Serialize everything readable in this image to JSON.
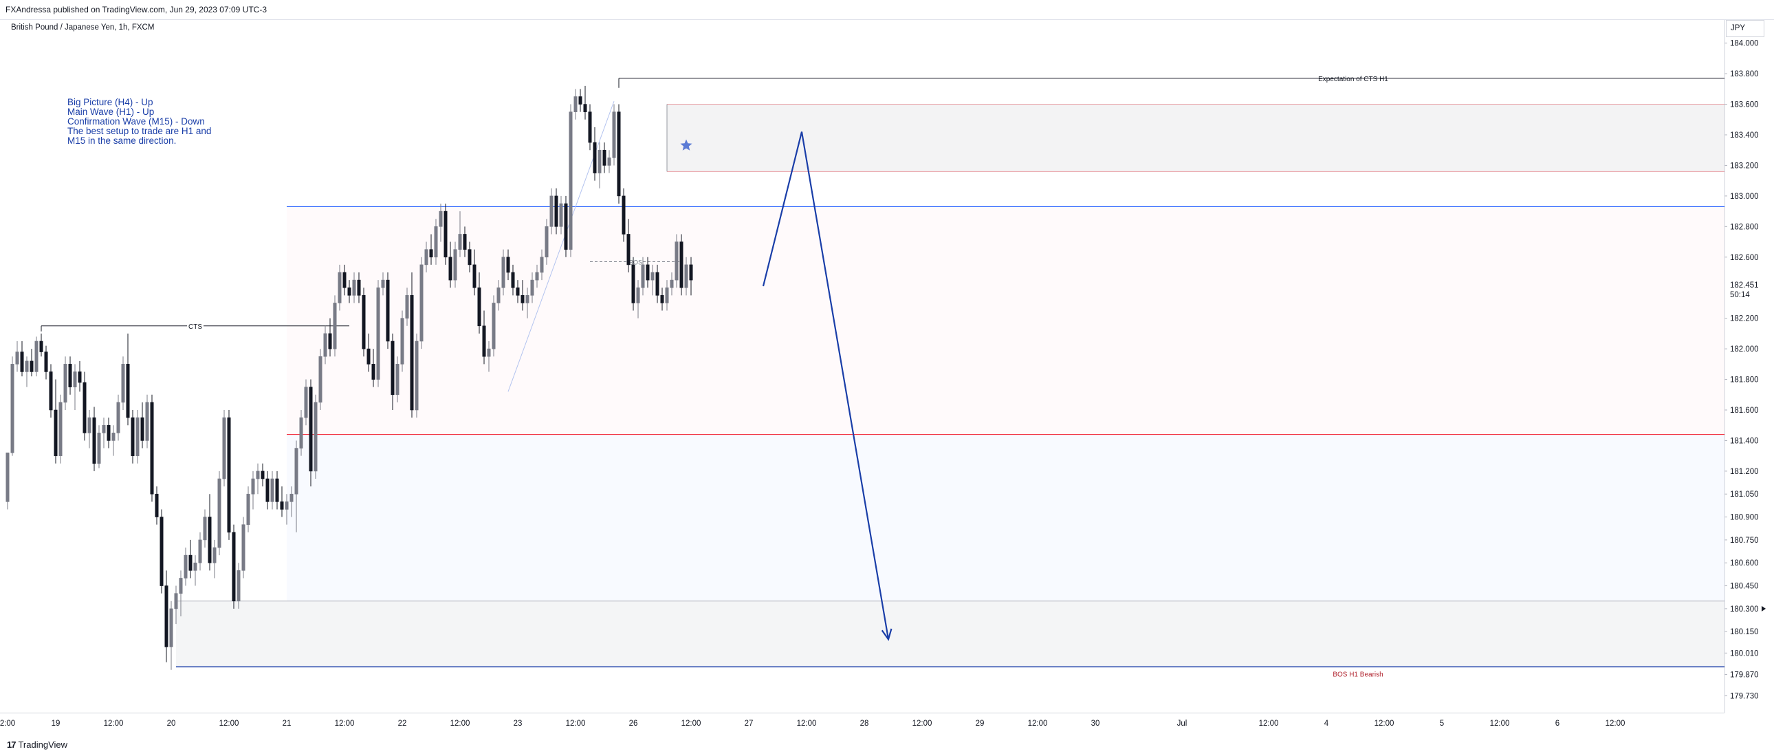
{
  "header": {
    "publish_line": "FXAndressa published on TradingView.com, Jun 29, 2023 07:09 UTC-3",
    "symbol_line": "British Pound / Japanese Yen, 1h, FXCM"
  },
  "notes": {
    "lines": [
      "Big Picture (H4) - Up",
      "Main Wave (H1) - Up",
      "Confirmation Wave (M15) - Down",
      "",
      "The best setup to trade are H1 and",
      "M15 in the same direction."
    ]
  },
  "footer": {
    "brand": "TradingView",
    "brand_mark": "17"
  },
  "colors": {
    "candle_up": "#ffffff",
    "candle_down": "#131722",
    "candle_outline": "#131722",
    "blue_line": "#2962ff",
    "red_line": "#f23645",
    "arrow": "#1a3ea8",
    "star": "#5b7bd5"
  },
  "chart_data": {
    "type": "candlestick",
    "symbol": "British Pound / Japanese Yen, 1h, FXCM",
    "currency_label": "JPY",
    "ylim": [
      179.62,
      184.12
    ],
    "y_ticks": [
      "184.000",
      "183.800",
      "183.600",
      "183.400",
      "183.200",
      "183.000",
      "182.800",
      "182.600",
      "182.200",
      "182.000",
      "181.800",
      "181.600",
      "181.400",
      "181.200",
      "181.050",
      "180.900",
      "180.750",
      "180.600",
      "180.450",
      "180.300",
      "180.150",
      "180.010",
      "179.870",
      "179.730"
    ],
    "y_tick_values": [
      184.0,
      183.8,
      183.6,
      183.4,
      183.2,
      183.0,
      182.8,
      182.6,
      182.2,
      182.0,
      181.8,
      181.6,
      181.4,
      181.2,
      181.05,
      180.9,
      180.75,
      180.6,
      180.45,
      180.3,
      180.15,
      180.01,
      179.87,
      179.73
    ],
    "current_price": {
      "price": "182.451",
      "countdown": "50:14",
      "value": 182.451
    },
    "marker_price": 180.3,
    "x_ticks": [
      {
        "label": "2:00",
        "bar": 0
      },
      {
        "label": "19",
        "bar": 10
      },
      {
        "label": "12:00",
        "bar": 22
      },
      {
        "label": "20",
        "bar": 34
      },
      {
        "label": "12:00",
        "bar": 46
      },
      {
        "label": "21",
        "bar": 58
      },
      {
        "label": "12:00",
        "bar": 70
      },
      {
        "label": "22",
        "bar": 82
      },
      {
        "label": "12:00",
        "bar": 94
      },
      {
        "label": "23",
        "bar": 106
      },
      {
        "label": "12:00",
        "bar": 118
      },
      {
        "label": "26",
        "bar": 130
      },
      {
        "label": "12:00",
        "bar": 142
      },
      {
        "label": "27",
        "bar": 154
      },
      {
        "label": "12:00",
        "bar": 166
      },
      {
        "label": "28",
        "bar": 178
      },
      {
        "label": "12:00",
        "bar": 190
      },
      {
        "label": "29",
        "bar": 202
      },
      {
        "label": "12:00",
        "bar": 214
      },
      {
        "label": "30",
        "bar": 226
      },
      {
        "label": "Jul",
        "bar": 244
      },
      {
        "label": "12:00",
        "bar": 262
      },
      {
        "label": "4",
        "bar": 274
      },
      {
        "label": "12:00",
        "bar": 286
      },
      {
        "label": "5",
        "bar": 298
      },
      {
        "label": "12:00",
        "bar": 310
      },
      {
        "label": "6",
        "bar": 322
      },
      {
        "label": "12:00",
        "bar": 334
      }
    ],
    "candles": [
      [
        181.0,
        181.3,
        180.95,
        181.32
      ],
      [
        181.32,
        181.95,
        181.3,
        181.9
      ],
      [
        181.9,
        182.05,
        181.85,
        181.98
      ],
      [
        181.98,
        182.05,
        181.82,
        181.85
      ],
      [
        181.85,
        181.95,
        181.75,
        181.92
      ],
      [
        181.92,
        182.0,
        181.82,
        181.85
      ],
      [
        181.85,
        182.08,
        181.82,
        182.05
      ],
      [
        182.05,
        182.1,
        181.95,
        181.98
      ],
      [
        181.98,
        182.02,
        181.8,
        181.85
      ],
      [
        181.85,
        181.9,
        181.55,
        181.6
      ],
      [
        181.6,
        181.8,
        181.25,
        181.3
      ],
      [
        181.3,
        181.7,
        181.25,
        181.65
      ],
      [
        181.65,
        181.95,
        181.6,
        181.9
      ],
      [
        181.9,
        181.95,
        181.7,
        181.75
      ],
      [
        181.75,
        181.9,
        181.6,
        181.85
      ],
      [
        181.85,
        181.92,
        181.72,
        181.78
      ],
      [
        181.78,
        181.85,
        181.4,
        181.45
      ],
      [
        181.45,
        181.6,
        181.35,
        181.55
      ],
      [
        181.55,
        181.62,
        181.2,
        181.25
      ],
      [
        181.25,
        181.5,
        181.22,
        181.45
      ],
      [
        181.45,
        181.55,
        181.35,
        181.5
      ],
      [
        181.5,
        181.55,
        181.35,
        181.4
      ],
      [
        181.4,
        181.5,
        181.3,
        181.45
      ],
      [
        181.45,
        181.7,
        181.4,
        181.65
      ],
      [
        181.65,
        181.95,
        181.6,
        181.9
      ],
      [
        181.9,
        182.1,
        181.5,
        181.55
      ],
      [
        181.55,
        181.6,
        181.25,
        181.3
      ],
      [
        181.3,
        181.6,
        181.25,
        181.55
      ],
      [
        181.55,
        181.65,
        181.35,
        181.4
      ],
      [
        181.4,
        181.7,
        181.35,
        181.65
      ],
      [
        181.65,
        181.7,
        181.0,
        181.05
      ],
      [
        181.05,
        181.1,
        180.85,
        180.9
      ],
      [
        180.9,
        180.95,
        180.4,
        180.45
      ],
      [
        180.45,
        180.55,
        179.95,
        180.05
      ],
      [
        180.05,
        180.35,
        179.9,
        180.3
      ],
      [
        180.3,
        180.45,
        180.2,
        180.4
      ],
      [
        180.4,
        180.55,
        180.25,
        180.5
      ],
      [
        180.5,
        180.7,
        180.45,
        180.65
      ],
      [
        180.65,
        180.75,
        180.5,
        180.55
      ],
      [
        180.55,
        180.65,
        180.45,
        180.6
      ],
      [
        180.6,
        180.8,
        180.55,
        180.75
      ],
      [
        180.75,
        180.95,
        180.7,
        180.9
      ],
      [
        180.9,
        181.05,
        180.55,
        180.6
      ],
      [
        180.6,
        180.75,
        180.5,
        180.7
      ],
      [
        180.7,
        181.2,
        180.65,
        181.15
      ],
      [
        181.15,
        181.6,
        181.1,
        181.55
      ],
      [
        181.55,
        181.6,
        180.75,
        180.8
      ],
      [
        180.8,
        180.85,
        180.3,
        180.35
      ],
      [
        180.35,
        180.6,
        180.3,
        180.55
      ],
      [
        180.55,
        180.9,
        180.5,
        180.85
      ],
      [
        180.85,
        181.1,
        180.8,
        181.05
      ],
      [
        181.05,
        181.2,
        180.95,
        181.15
      ],
      [
        181.15,
        181.25,
        181.05,
        181.2
      ],
      [
        181.2,
        181.25,
        181.1,
        181.15
      ],
      [
        181.15,
        181.2,
        180.95,
        181.0
      ],
      [
        181.0,
        181.2,
        180.95,
        181.15
      ],
      [
        181.15,
        181.2,
        180.95,
        181.0
      ],
      [
        181.0,
        181.1,
        180.9,
        180.95
      ],
      [
        180.95,
        181.05,
        180.85,
        181.0
      ],
      [
        181.0,
        181.1,
        180.9,
        181.05
      ],
      [
        181.05,
        181.4,
        180.8,
        181.35
      ],
      [
        181.35,
        181.6,
        181.3,
        181.55
      ],
      [
        181.55,
        181.8,
        181.5,
        181.75
      ],
      [
        181.75,
        181.8,
        181.1,
        181.2
      ],
      [
        181.2,
        181.7,
        181.15,
        181.65
      ],
      [
        181.65,
        182.0,
        181.6,
        181.95
      ],
      [
        181.95,
        182.15,
        181.9,
        182.1
      ],
      [
        182.1,
        182.2,
        181.95,
        182.0
      ],
      [
        182.0,
        182.35,
        181.95,
        182.3
      ],
      [
        182.3,
        182.55,
        182.25,
        182.5
      ],
      [
        182.5,
        182.55,
        182.35,
        182.4
      ],
      [
        182.4,
        182.45,
        182.3,
        182.35
      ],
      [
        182.35,
        182.5,
        182.3,
        182.45
      ],
      [
        182.45,
        182.5,
        182.3,
        182.35
      ],
      [
        182.35,
        182.4,
        181.95,
        182.0
      ],
      [
        182.0,
        182.1,
        181.85,
        181.9
      ],
      [
        181.9,
        182.0,
        181.75,
        181.8
      ],
      [
        181.8,
        182.45,
        181.75,
        182.4
      ],
      [
        182.4,
        182.5,
        182.35,
        182.45
      ],
      [
        182.45,
        182.5,
        182.0,
        182.05
      ],
      [
        182.05,
        182.1,
        181.6,
        181.7
      ],
      [
        181.7,
        181.95,
        181.65,
        181.9
      ],
      [
        181.9,
        182.25,
        181.85,
        182.2
      ],
      [
        182.2,
        182.4,
        182.15,
        182.35
      ],
      [
        182.35,
        182.5,
        181.55,
        181.6
      ],
      [
        181.6,
        182.1,
        181.55,
        182.05
      ],
      [
        182.05,
        182.6,
        182.0,
        182.55
      ],
      [
        182.55,
        182.7,
        182.5,
        182.65
      ],
      [
        182.65,
        182.75,
        182.55,
        182.6
      ],
      [
        182.6,
        182.85,
        182.55,
        182.8
      ],
      [
        182.8,
        182.95,
        182.7,
        182.9
      ],
      [
        182.9,
        182.95,
        182.55,
        182.6
      ],
      [
        182.6,
        182.7,
        182.4,
        182.45
      ],
      [
        182.45,
        182.7,
        182.4,
        182.65
      ],
      [
        182.65,
        182.9,
        182.6,
        182.75
      ],
      [
        182.75,
        182.8,
        182.6,
        182.65
      ],
      [
        182.65,
        182.7,
        182.5,
        182.55
      ],
      [
        182.55,
        182.65,
        182.35,
        182.4
      ],
      [
        182.4,
        182.5,
        182.1,
        182.15
      ],
      [
        182.15,
        182.25,
        181.9,
        181.95
      ],
      [
        181.95,
        182.05,
        181.85,
        182.0
      ],
      [
        182.0,
        182.35,
        181.95,
        182.3
      ],
      [
        182.3,
        182.45,
        182.25,
        182.4
      ],
      [
        182.4,
        182.65,
        182.35,
        182.6
      ],
      [
        182.6,
        182.65,
        182.45,
        182.5
      ],
      [
        182.5,
        182.55,
        182.35,
        182.4
      ],
      [
        182.4,
        182.45,
        182.3,
        182.35
      ],
      [
        182.35,
        182.45,
        182.25,
        182.3
      ],
      [
        182.3,
        182.4,
        182.2,
        182.35
      ],
      [
        182.35,
        182.5,
        182.3,
        182.45
      ],
      [
        182.45,
        182.55,
        182.4,
        182.5
      ],
      [
        182.5,
        182.65,
        182.45,
        182.6
      ],
      [
        182.6,
        182.85,
        182.55,
        182.8
      ],
      [
        182.8,
        183.05,
        182.75,
        183.0
      ],
      [
        183.0,
        183.05,
        182.75,
        182.8
      ],
      [
        182.8,
        183.0,
        182.75,
        182.95
      ],
      [
        182.95,
        183.0,
        182.6,
        182.65
      ],
      [
        182.65,
        183.6,
        182.6,
        183.55
      ],
      [
        183.55,
        183.7,
        183.5,
        183.65
      ],
      [
        183.65,
        183.7,
        183.55,
        183.6
      ],
      [
        183.6,
        183.72,
        183.5,
        183.55
      ],
      [
        183.55,
        183.6,
        183.3,
        183.35
      ],
      [
        183.35,
        183.45,
        183.1,
        183.15
      ],
      [
        183.15,
        183.35,
        183.05,
        183.3
      ],
      [
        183.3,
        183.35,
        183.15,
        183.2
      ],
      [
        183.2,
        183.3,
        183.15,
        183.25
      ],
      [
        183.25,
        183.6,
        183.2,
        183.55
      ],
      [
        183.55,
        183.6,
        182.95,
        183.0
      ],
      [
        183.0,
        183.05,
        182.7,
        182.75
      ],
      [
        182.75,
        182.85,
        182.5,
        182.55
      ],
      [
        182.55,
        182.6,
        182.25,
        182.3
      ],
      [
        182.3,
        182.45,
        182.2,
        182.4
      ],
      [
        182.4,
        182.6,
        182.35,
        182.55
      ],
      [
        182.55,
        182.6,
        182.4,
        182.45
      ],
      [
        182.45,
        182.55,
        182.35,
        182.5
      ],
      [
        182.5,
        182.55,
        182.3,
        182.35
      ],
      [
        182.35,
        182.4,
        182.25,
        182.3
      ],
      [
        182.3,
        182.45,
        182.25,
        182.4
      ],
      [
        182.4,
        182.5,
        182.35,
        182.45
      ],
      [
        182.45,
        182.75,
        182.4,
        182.7
      ],
      [
        182.7,
        182.75,
        182.35,
        182.4
      ],
      [
        182.4,
        182.6,
        182.35,
        182.55
      ],
      [
        182.55,
        182.6,
        182.35,
        182.45
      ]
    ],
    "candle_bar_range": [
      0,
      201
    ],
    "annotations": {
      "cts_label": "CTS",
      "cts_price": 182.15,
      "cts_bars": [
        7,
        71
      ],
      "expectation_label": "Expectation of CTS H1",
      "expectation_price": 183.77,
      "expectation_bar": 127,
      "bos_label": "BOS",
      "bos_price": 182.57,
      "bos_bars": [
        121,
        140
      ],
      "bos_bearish_label": "BOS H1 Bearish",
      "blue_line_price": 182.93,
      "red_line_price": 181.44,
      "supply_zone": {
        "top": 183.6,
        "bottom": 183.16,
        "start_bar": 137
      },
      "upper_range_zone": {
        "top": 182.93,
        "bottom": 181.44,
        "start_bar": 58
      },
      "lower_range_zone": {
        "top": 181.44,
        "bottom": 180.35,
        "start_bar": 58
      },
      "demand_zone": {
        "top": 180.35,
        "bottom": 179.92,
        "start_bar": 35
      },
      "bottom_line_price": 179.92,
      "projection_arrow": [
        {
          "bar": 157,
          "price": 182.41
        },
        {
          "bar": 165,
          "price": 183.42
        },
        {
          "bar": 183,
          "price": 180.1
        }
      ],
      "star": {
        "bar": 141,
        "price": 183.33
      },
      "trend_line": [
        {
          "bar": 104,
          "price": 181.72
        },
        {
          "bar": 126,
          "price": 183.62
        }
      ]
    }
  }
}
